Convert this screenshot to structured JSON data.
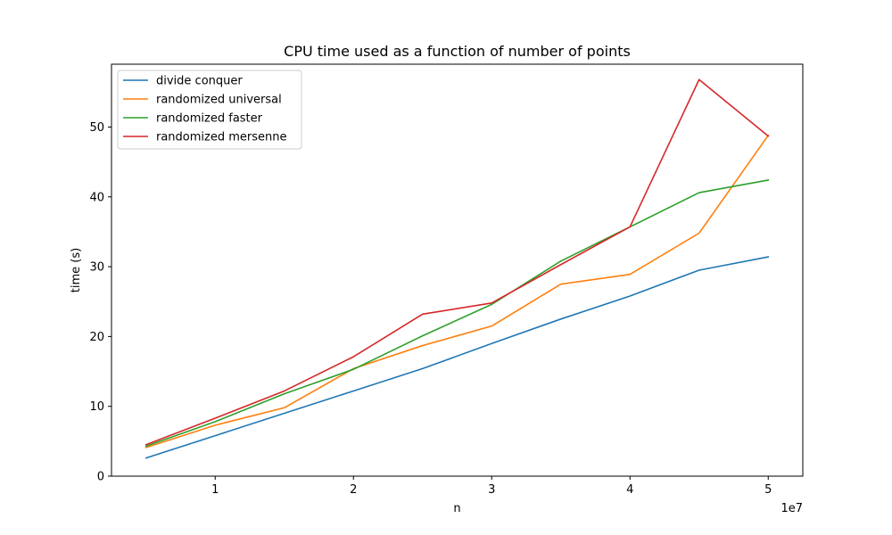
{
  "chart_data": {
    "type": "line",
    "title": "CPU time used as a function of number of points",
    "xlabel": "n",
    "ylabel": "time (s)",
    "x_offset_text": "1e7",
    "x": [
      5000000,
      10000000,
      15000000,
      20000000,
      25000000,
      30000000,
      35000000,
      40000000,
      45000000,
      50000000
    ],
    "xlim": [
      2500000,
      52500000
    ],
    "ylim": [
      0,
      59
    ],
    "x_ticks": [
      10000000,
      20000000,
      30000000,
      40000000,
      50000000
    ],
    "x_tick_labels": [
      "1",
      "2",
      "3",
      "4",
      "5"
    ],
    "y_ticks": [
      0,
      10,
      20,
      30,
      40,
      50
    ],
    "y_tick_labels": [
      "0",
      "10",
      "20",
      "30",
      "40",
      "50"
    ],
    "grid": false,
    "legend_position": "top-left",
    "series": [
      {
        "name": "divide conquer",
        "color": "#1f77b4",
        "values": [
          2.6,
          5.8,
          9.0,
          12.2,
          15.4,
          19.0,
          22.5,
          25.8,
          29.5,
          31.4
        ]
      },
      {
        "name": "randomized universal",
        "color": "#ff7f0e",
        "values": [
          4.1,
          7.3,
          9.8,
          15.4,
          18.7,
          21.5,
          27.5,
          28.9,
          34.8,
          48.8
        ]
      },
      {
        "name": "randomized faster",
        "color": "#2ca02c",
        "values": [
          4.3,
          7.8,
          11.8,
          15.3,
          20.1,
          24.6,
          30.8,
          35.7,
          40.6,
          42.4
        ]
      },
      {
        "name": "randomized mersenne",
        "color": "#d62728",
        "values": [
          4.5,
          8.3,
          12.2,
          17.1,
          23.2,
          24.8,
          30.3,
          35.7,
          56.8,
          48.7
        ]
      }
    ]
  }
}
